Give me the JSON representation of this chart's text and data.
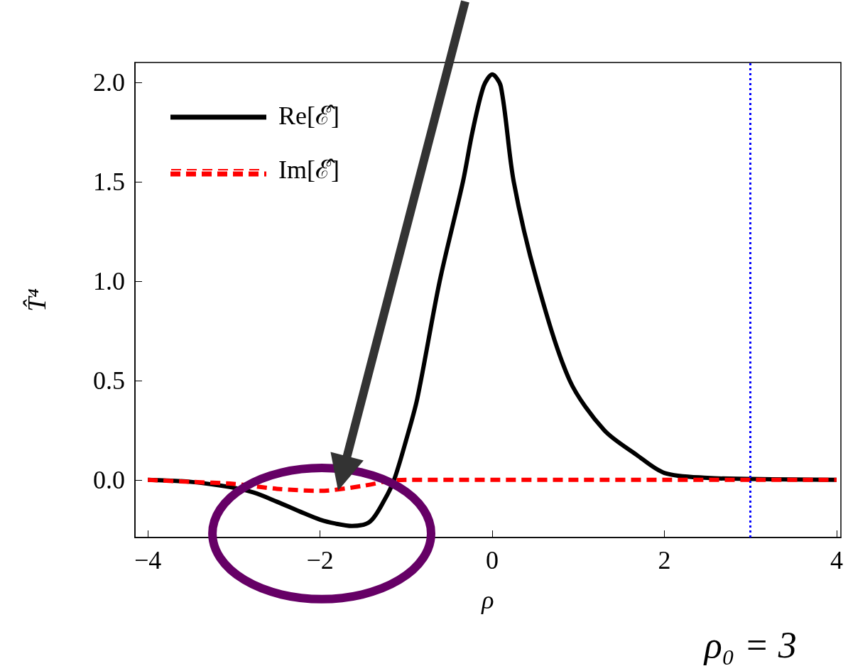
{
  "chart_data": {
    "type": "line",
    "xlabel": "ρ",
    "ylabel": "T̂⁴",
    "xlim": [
      -4.15,
      4.05
    ],
    "ylim": [
      -0.29,
      2.1
    ],
    "xticks": [
      {
        "value": -4,
        "label": "−4"
      },
      {
        "value": -2,
        "label": "−2"
      },
      0,
      2,
      4
    ],
    "yticks": [
      {
        "value": 0,
        "label": "0.0"
      },
      {
        "value": 0.5,
        "label": "0.5"
      },
      {
        "value": 1,
        "label": "1.0"
      },
      {
        "value": 1.5,
        "label": "1.5"
      },
      {
        "value": 2,
        "label": "2.0"
      }
    ],
    "series": [
      {
        "name": "Re[ℰ̂]",
        "color": "#000000",
        "line_style": "solid",
        "x": [
          -4,
          -3.5,
          -3.05,
          -2.77,
          -2.5,
          -2.23,
          -2,
          -1.82,
          -1.63,
          -1.42,
          -1.25,
          -1.14,
          -1,
          -0.87,
          -0.61,
          -0.34,
          -0.23,
          -0.1,
          0,
          0.1,
          0.25,
          0.52,
          0.9,
          1.3,
          1.68,
          2,
          2.5,
          3,
          3.5,
          4
        ],
        "values": [
          0,
          -0.01,
          -0.036,
          -0.064,
          -0.11,
          -0.16,
          -0.2,
          -0.22,
          -0.232,
          -0.21,
          -0.1,
          0,
          0.2,
          0.41,
          1.0,
          1.5,
          1.75,
          1.98,
          2.04,
          1.98,
          1.5,
          1.0,
          0.5,
          0.25,
          0.125,
          0.035,
          0.01,
          0.005,
          0.002,
          0
        ]
      },
      {
        "name": "Im[ℰ̂]",
        "color": "#ff0000",
        "line_style": "dashed",
        "x": [
          -4,
          -3.5,
          -3,
          -2.5,
          -2,
          -1.5,
          -1.2,
          -1,
          0,
          1,
          2,
          3,
          4
        ],
        "values": [
          0,
          -0.01,
          -0.02,
          -0.045,
          -0.055,
          -0.03,
          -0.005,
          0,
          0,
          0,
          0,
          0,
          0
        ]
      }
    ],
    "ref_lines": [
      {
        "axis": "x",
        "value": 3,
        "label": "ρ₀ = 3",
        "color": "#0000ff",
        "line_style": "dotted"
      }
    ],
    "legend": "top left",
    "grid": false,
    "marker": "none"
  }
}
